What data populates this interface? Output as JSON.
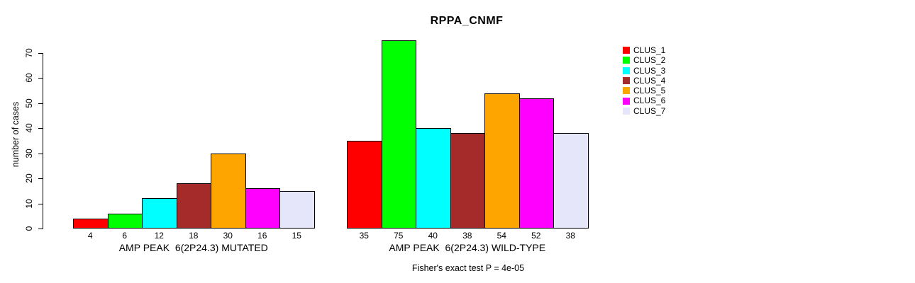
{
  "title": "RPPA_CNMF",
  "chart_data": {
    "type": "bar",
    "title": "RPPA_CNMF",
    "ylabel": "number of cases",
    "xlabel": "",
    "ylim": [
      0,
      75
    ],
    "yticks": [
      0,
      10,
      20,
      30,
      40,
      50,
      60,
      70
    ],
    "grid": false,
    "legend_position": "right-inside",
    "groups": [
      {
        "label": "AMP PEAK  6(2P24.3) MUTATED",
        "values": [
          4,
          6,
          12,
          18,
          30,
          16,
          15
        ],
        "bar_labels": [
          "4",
          "6",
          "12",
          "18",
          "30",
          "16",
          "15"
        ]
      },
      {
        "label": "AMP PEAK  6(2P24.3) WILD-TYPE",
        "values": [
          35,
          75,
          40,
          38,
          54,
          52,
          38
        ],
        "bar_labels": [
          "35",
          "75",
          "40",
          "38",
          "54",
          "52",
          "38"
        ]
      }
    ],
    "legend": [
      {
        "label": "CLUS_1",
        "color": "#FF0000"
      },
      {
        "label": "CLUS_2",
        "color": "#00FF00"
      },
      {
        "label": "CLUS_3",
        "color": "#00FFFF"
      },
      {
        "label": "CLUS_4",
        "color": "#A52A2A"
      },
      {
        "label": "CLUS_5",
        "color": "#FFA500"
      },
      {
        "label": "CLUS_6",
        "color": "#FF00FF"
      },
      {
        "label": "CLUS_7",
        "color": "#E6E6FA"
      }
    ],
    "bar_border_color": "#000000",
    "axis_color": "#000000",
    "footnote": "Fisher's exact test P = 4e-05"
  }
}
